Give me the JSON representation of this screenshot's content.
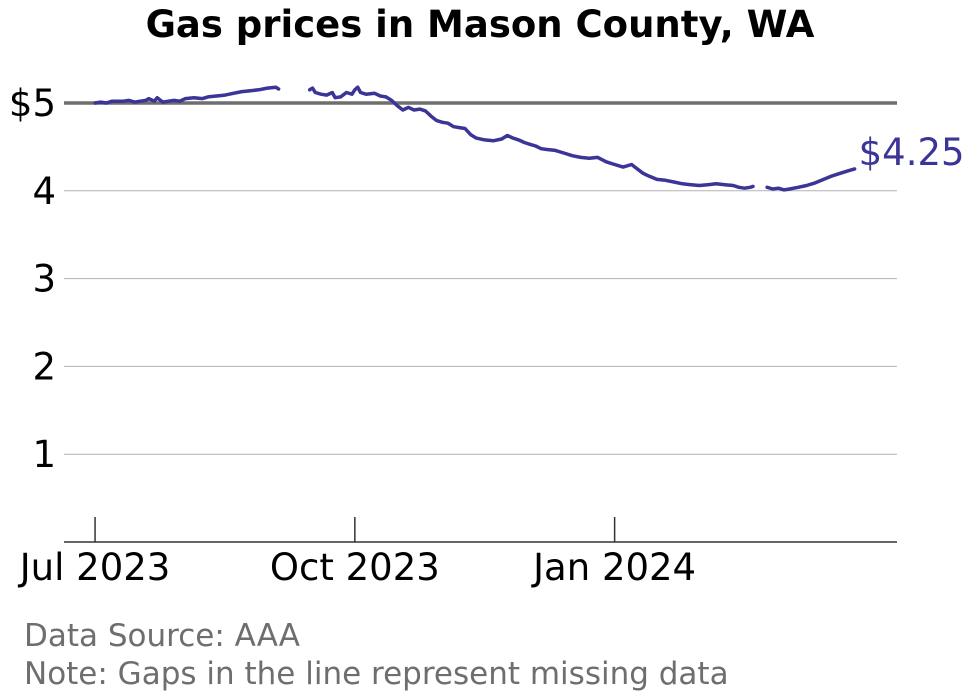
{
  "chart_data": {
    "type": "line",
    "title": "Gas prices in Mason County, WA",
    "xlabel": "",
    "ylabel": "",
    "x_ticks": [
      "Jul 2023",
      "Oct 2023",
      "Jan 2024"
    ],
    "y_ticks": [
      "1",
      "2",
      "3",
      "4",
      "$5"
    ],
    "ylim": [
      0,
      5.5
    ],
    "xlim": [
      "2023-06-20",
      "2024-04-10"
    ],
    "reference_line": 5,
    "end_label": "$4.25",
    "grid": "horizontal",
    "series": [
      {
        "color": "#3a3597",
        "segments": [
          [
            [
              "2023-07-01",
              5.0
            ],
            [
              "2023-07-03",
              5.01
            ],
            [
              "2023-07-05",
              5.0
            ],
            [
              "2023-07-07",
              5.02
            ],
            [
              "2023-07-09",
              5.02
            ],
            [
              "2023-07-11",
              5.02
            ],
            [
              "2023-07-13",
              5.03
            ],
            [
              "2023-07-15",
              5.01
            ],
            [
              "2023-07-17",
              5.02
            ],
            [
              "2023-07-19",
              5.03
            ],
            [
              "2023-07-20",
              5.05
            ],
            [
              "2023-07-22",
              5.02
            ],
            [
              "2023-07-23",
              5.06
            ],
            [
              "2023-07-25",
              5.01
            ],
            [
              "2023-07-27",
              5.02
            ],
            [
              "2023-07-29",
              5.03
            ],
            [
              "2023-07-31",
              5.02
            ],
            [
              "2023-08-02",
              5.05
            ],
            [
              "2023-08-05",
              5.06
            ],
            [
              "2023-08-08",
              5.05
            ],
            [
              "2023-08-10",
              5.07
            ],
            [
              "2023-08-13",
              5.08
            ],
            [
              "2023-08-16",
              5.09
            ],
            [
              "2023-08-19",
              5.11
            ],
            [
              "2023-08-22",
              5.13
            ],
            [
              "2023-08-25",
              5.14
            ],
            [
              "2023-08-28",
              5.15
            ],
            [
              "2023-08-31",
              5.17
            ],
            [
              "2023-09-03",
              5.18
            ],
            [
              "2023-09-04",
              5.16
            ]
          ],
          [
            [
              "2023-09-15",
              5.15
            ],
            [
              "2023-09-16",
              5.17
            ],
            [
              "2023-09-17",
              5.12
            ],
            [
              "2023-09-19",
              5.1
            ],
            [
              "2023-09-21",
              5.09
            ],
            [
              "2023-09-23",
              5.12
            ],
            [
              "2023-09-24",
              5.06
            ],
            [
              "2023-09-26",
              5.07
            ],
            [
              "2023-09-28",
              5.12
            ],
            [
              "2023-09-30",
              5.1
            ],
            [
              "2023-10-01",
              5.15
            ],
            [
              "2023-10-02",
              5.18
            ],
            [
              "2023-10-03",
              5.12
            ],
            [
              "2023-10-05",
              5.1
            ],
            [
              "2023-10-08",
              5.11
            ],
            [
              "2023-10-10",
              5.08
            ],
            [
              "2023-10-12",
              5.07
            ],
            [
              "2023-10-14",
              5.03
            ],
            [
              "2023-10-16",
              4.97
            ],
            [
              "2023-10-18",
              4.92
            ],
            [
              "2023-10-20",
              4.95
            ],
            [
              "2023-10-22",
              4.92
            ],
            [
              "2023-10-24",
              4.93
            ],
            [
              "2023-10-26",
              4.91
            ],
            [
              "2023-10-28",
              4.85
            ],
            [
              "2023-10-30",
              4.8
            ],
            [
              "2023-11-01",
              4.78
            ],
            [
              "2023-11-03",
              4.77
            ],
            [
              "2023-11-05",
              4.73
            ],
            [
              "2023-11-07",
              4.72
            ],
            [
              "2023-11-09",
              4.71
            ],
            [
              "2023-11-11",
              4.64
            ],
            [
              "2023-11-13",
              4.6
            ],
            [
              "2023-11-16",
              4.58
            ],
            [
              "2023-11-19",
              4.57
            ],
            [
              "2023-11-22",
              4.59
            ],
            [
              "2023-11-24",
              4.63
            ],
            [
              "2023-11-26",
              4.6
            ],
            [
              "2023-11-28",
              4.58
            ],
            [
              "2023-11-30",
              4.55
            ],
            [
              "2023-12-02",
              4.53
            ],
            [
              "2023-12-04",
              4.51
            ],
            [
              "2023-12-06",
              4.48
            ],
            [
              "2023-12-08",
              4.47
            ],
            [
              "2023-12-11",
              4.46
            ],
            [
              "2023-12-14",
              4.43
            ],
            [
              "2023-12-17",
              4.4
            ],
            [
              "2023-12-20",
              4.38
            ],
            [
              "2023-12-23",
              4.37
            ],
            [
              "2023-12-26",
              4.38
            ],
            [
              "2023-12-29",
              4.33
            ],
            [
              "2024-01-01",
              4.3
            ],
            [
              "2024-01-04",
              4.27
            ],
            [
              "2024-01-07",
              4.3
            ],
            [
              "2024-01-09",
              4.25
            ],
            [
              "2024-01-11",
              4.2
            ],
            [
              "2024-01-13",
              4.17
            ],
            [
              "2024-01-16",
              4.13
            ],
            [
              "2024-01-19",
              4.12
            ],
            [
              "2024-01-22",
              4.1
            ],
            [
              "2024-01-25",
              4.08
            ],
            [
              "2024-01-28",
              4.07
            ],
            [
              "2024-01-31",
              4.06
            ],
            [
              "2024-02-03",
              4.07
            ],
            [
              "2024-02-06",
              4.08
            ],
            [
              "2024-02-09",
              4.07
            ],
            [
              "2024-02-12",
              4.06
            ],
            [
              "2024-02-14",
              4.04
            ],
            [
              "2024-02-16",
              4.03
            ],
            [
              "2024-02-18",
              4.04
            ],
            [
              "2024-02-19",
              4.05
            ]
          ],
          [
            [
              "2024-02-24",
              4.04
            ],
            [
              "2024-02-26",
              4.02
            ],
            [
              "2024-02-28",
              4.03
            ],
            [
              "2024-03-01",
              4.01
            ],
            [
              "2024-03-03",
              4.02
            ],
            [
              "2024-03-06",
              4.04
            ],
            [
              "2024-03-09",
              4.06
            ],
            [
              "2024-03-12",
              4.09
            ],
            [
              "2024-03-15",
              4.13
            ],
            [
              "2024-03-18",
              4.17
            ],
            [
              "2024-03-21",
              4.2
            ],
            [
              "2024-03-24",
              4.23
            ],
            [
              "2024-03-26",
              4.25
            ]
          ]
        ]
      }
    ]
  },
  "footer": {
    "source": "Data Source: AAA",
    "note": "Note: Gaps in the line represent missing data"
  },
  "colors": {
    "line": "#3a3597",
    "reference_line": "#6e6e6e",
    "grid": "#b3b3b3",
    "axis": "#333333",
    "note": "#6e6e6e"
  }
}
